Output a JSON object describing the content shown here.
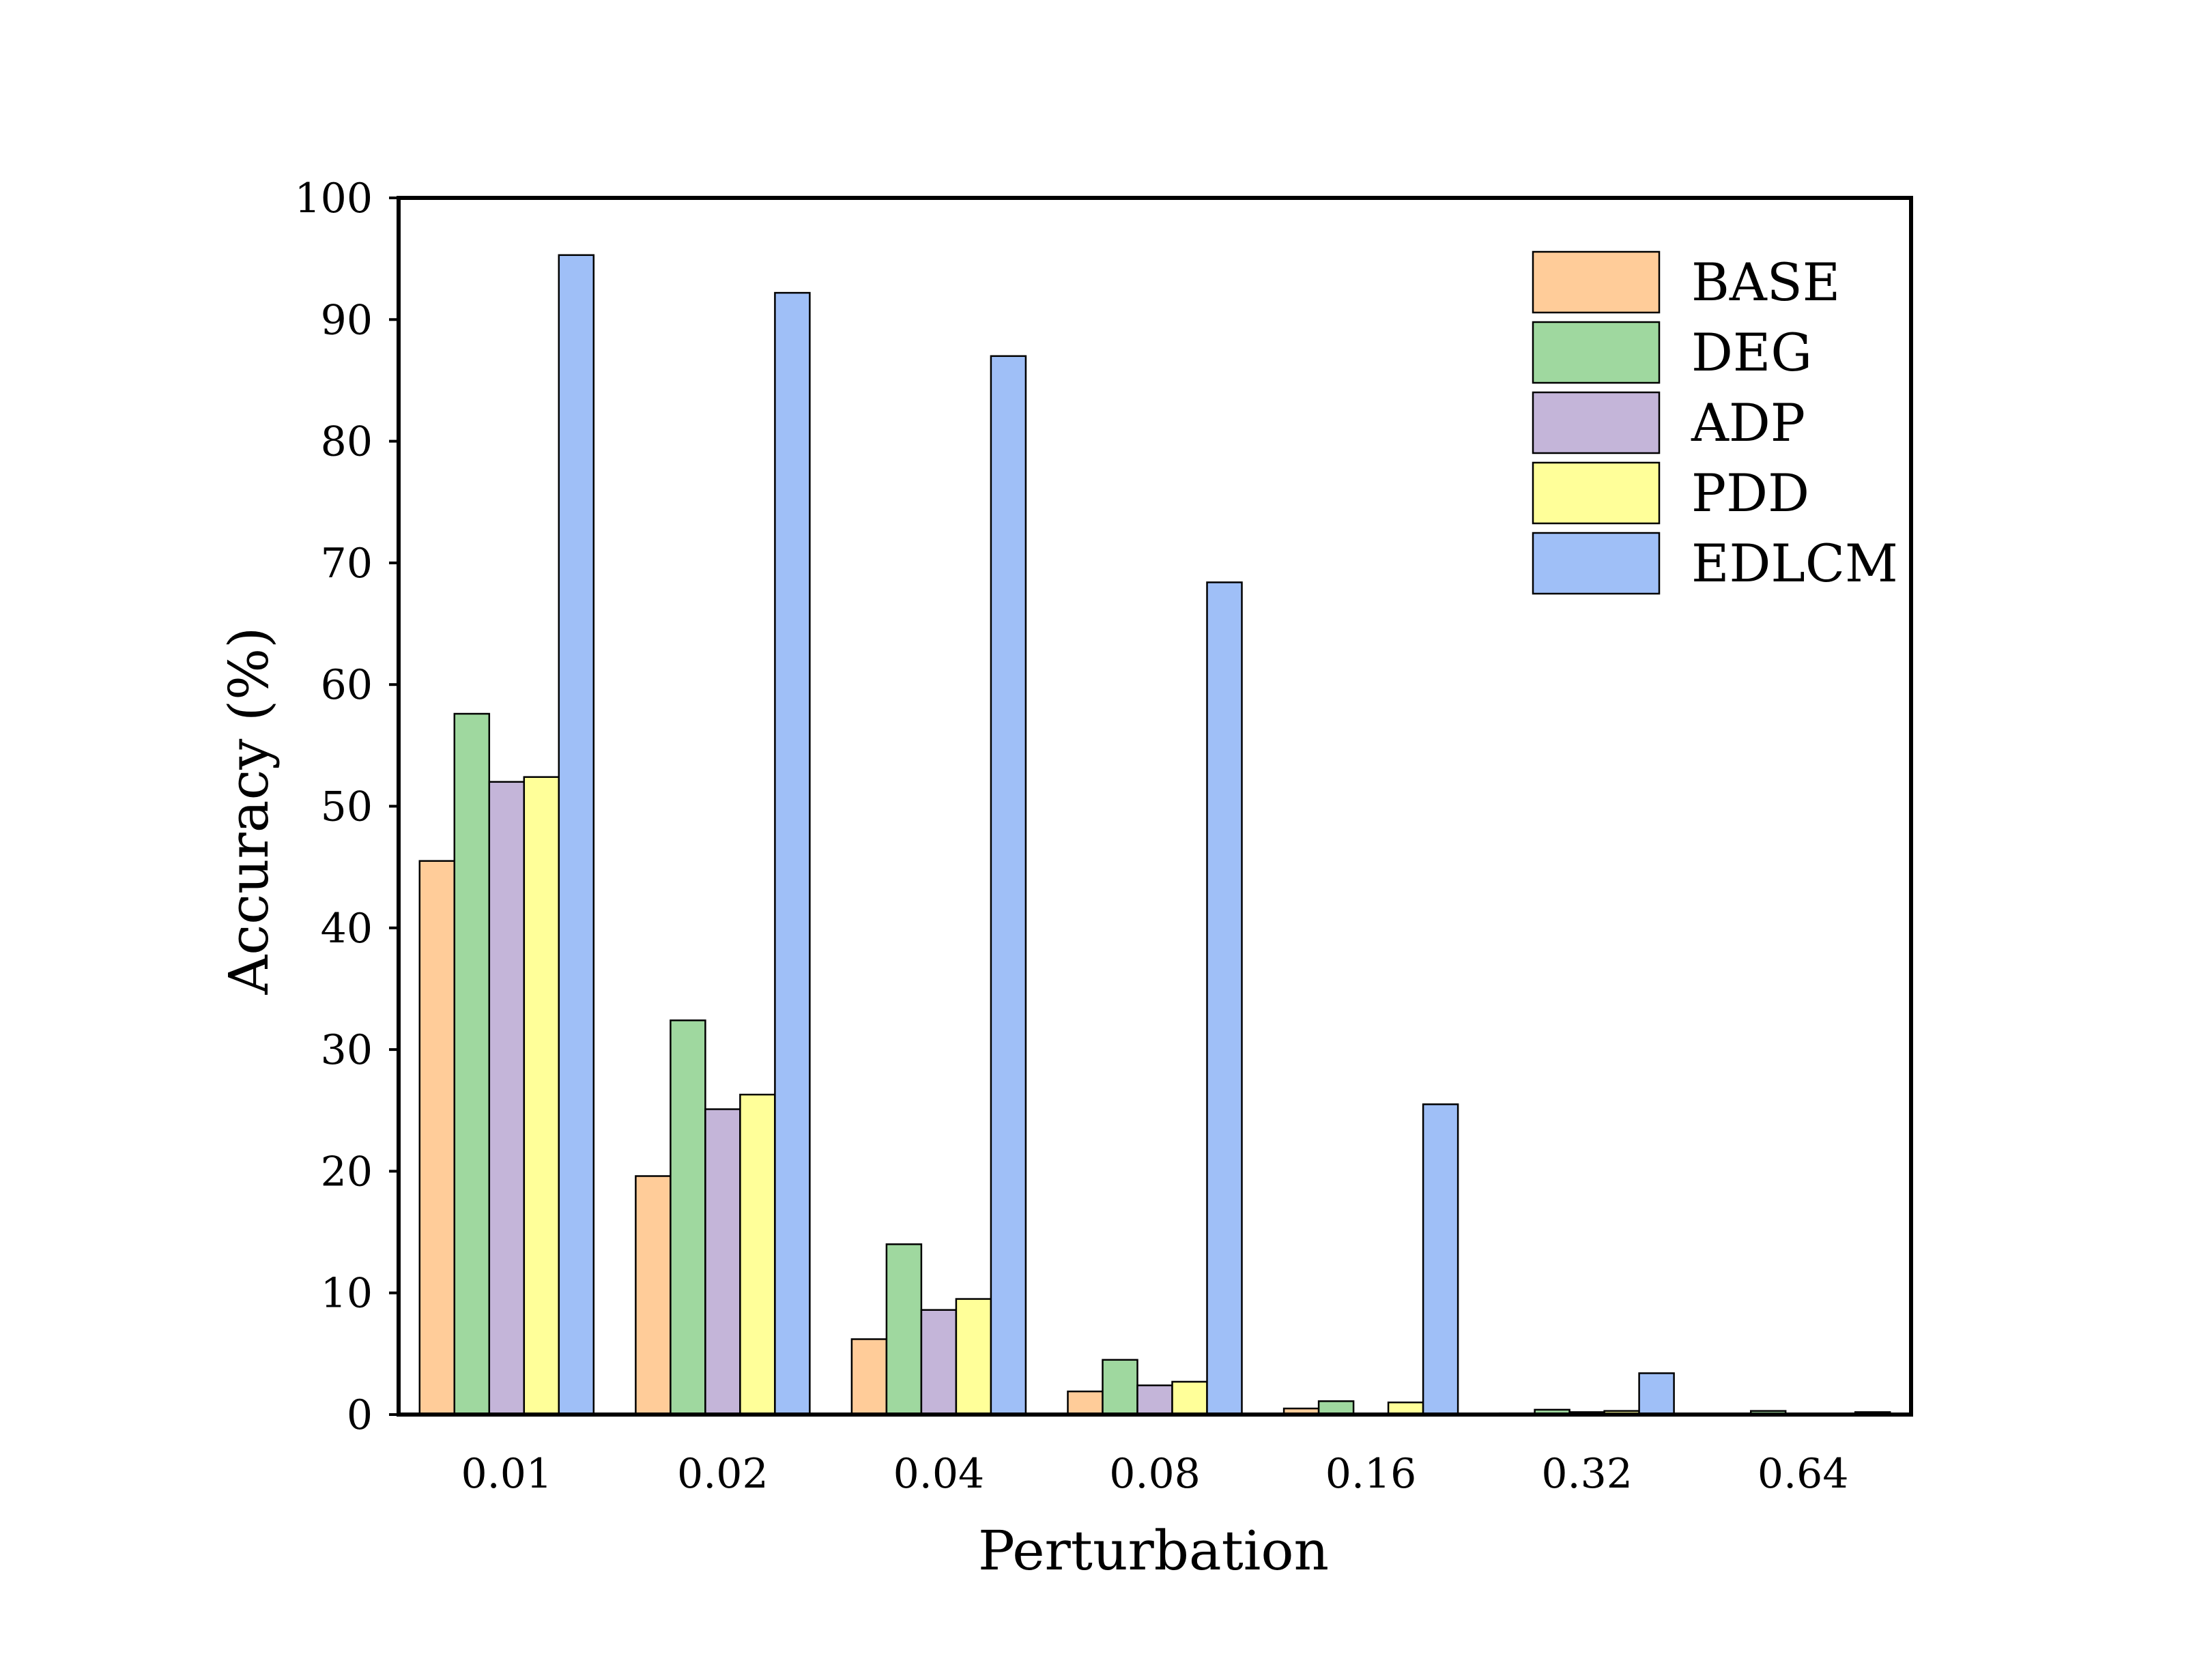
{
  "chart_data": {
    "type": "bar",
    "title": "",
    "xlabel": "Perturbation",
    "ylabel": "Accuracy (%)",
    "categories": [
      "0.01",
      "0.02",
      "0.04",
      "0.08",
      "0.16",
      "0.32",
      "0.64"
    ],
    "ylim": [
      0,
      100
    ],
    "yticks": [
      "0",
      "10",
      "20",
      "30",
      "40",
      "50",
      "60",
      "70",
      "80",
      "90",
      "100"
    ],
    "grid": false,
    "legend_position": "top-right",
    "series": [
      {
        "name": "BASE",
        "color": "#FFCC99",
        "values": [
          45.5,
          19.6,
          6.2,
          1.9,
          0.5,
          0.1,
          0.0
        ]
      },
      {
        "name": "DEG",
        "color": "#9FD89F",
        "values": [
          57.6,
          32.4,
          14.0,
          4.5,
          1.1,
          0.4,
          0.3
        ]
      },
      {
        "name": "ADP",
        "color": "#C4B5D9",
        "values": [
          52.0,
          25.1,
          8.6,
          2.4,
          0.0,
          0.2,
          0.0
        ]
      },
      {
        "name": "PDD",
        "color": "#FFFF99",
        "values": [
          52.4,
          26.3,
          9.5,
          2.7,
          1.0,
          0.3,
          0.0
        ]
      },
      {
        "name": "EDLCM",
        "color": "#9FBFF7",
        "values": [
          95.3,
          92.2,
          87.0,
          68.4,
          25.5,
          3.4,
          0.2
        ]
      }
    ]
  }
}
